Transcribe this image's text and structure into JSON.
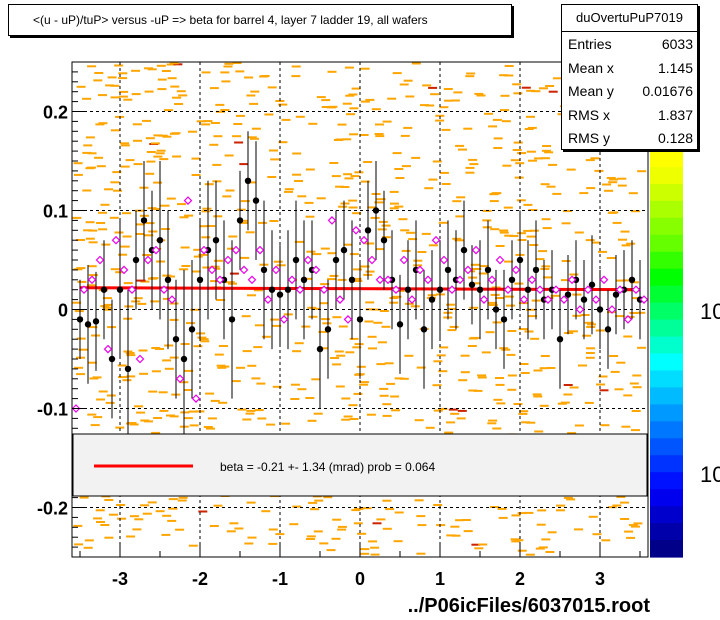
{
  "title": "<(u - uP)/tuP> versus  -uP => beta for barrel 4, layer 7 ladder 19, all wafers",
  "stats": {
    "name": "duOvertuPuP7019",
    "rows": [
      {
        "label": "Entries",
        "value": "6033"
      },
      {
        "label": "Mean x",
        "value": "1.145"
      },
      {
        "label": "Mean y",
        "value": "0.01676"
      },
      {
        "label": "RMS x",
        "value": "1.837"
      },
      {
        "label": "RMS y",
        "value": "0.128"
      }
    ]
  },
  "fit_legend": "beta =   -0.21 +-  1.34 (mrad) prob = 0.064",
  "footer": "../P06icFiles/6037015.root",
  "colors": {
    "fit_line": "#ff0000",
    "histogram_cells": "#ffa500",
    "profile_marker": "#000000",
    "open_marker": "#ee00ee"
  },
  "chart_data": {
    "type": "scatter",
    "title": "<(u - uP)/tuP> versus  -uP => beta for barrel 4, layer 7 ladder 19, all wafers",
    "xlim": [
      -3.6,
      3.6
    ],
    "ylim": [
      -0.25,
      0.25
    ],
    "x_ticks": [
      "-3",
      "-2",
      "-1",
      "0",
      "1",
      "2",
      "3"
    ],
    "y_ticks": [
      "-0.2",
      "-0.1",
      "0",
      "0.1",
      "0.2"
    ],
    "x_tick_values": [
      -3,
      -2,
      -1,
      0,
      1,
      2,
      3
    ],
    "y_tick_values": [
      -0.2,
      -0.1,
      0,
      0.1,
      0.2
    ],
    "grid": true,
    "colorbar_labels": [
      "10",
      "10"
    ],
    "fit_line": {
      "x": [
        -3.5,
        3.5
      ],
      "y": [
        0.022,
        0.02
      ]
    },
    "series": [
      {
        "marker": "filled-circle",
        "x": [
          -3.5,
          -3.4,
          -3.3,
          -3.2,
          -3.1,
          -3.0,
          -2.9,
          -2.8,
          -2.7,
          -2.6,
          -2.5,
          -2.4,
          -2.3,
          -2.2,
          -2.1,
          -2.0,
          -1.9,
          -1.8,
          -1.7,
          -1.6,
          -1.5,
          -1.4,
          -1.3,
          -1.2,
          -1.1,
          -1.0,
          -0.9,
          -0.8,
          -0.7,
          -0.6,
          -0.5,
          -0.4,
          -0.3,
          -0.2,
          -0.1,
          0.0,
          0.1,
          0.2,
          0.3,
          0.4,
          0.5,
          0.6,
          0.7,
          0.8,
          0.9,
          1.0,
          1.1,
          1.2,
          1.3,
          1.4,
          1.5,
          1.6,
          1.7,
          1.8,
          1.9,
          2.0,
          2.1,
          2.2,
          2.3,
          2.4,
          2.5,
          2.6,
          2.7,
          2.8,
          2.9,
          3.0,
          3.1,
          3.2,
          3.3,
          3.4,
          3.5
        ],
        "y": [
          -0.01,
          -0.015,
          -0.012,
          0.02,
          -0.05,
          0.02,
          -0.06,
          0.05,
          0.09,
          0.06,
          0.07,
          0.03,
          -0.03,
          -0.05,
          -0.02,
          0.03,
          0.06,
          0.07,
          0.03,
          -0.01,
          0.09,
          0.13,
          0.11,
          0.04,
          0.02,
          0.015,
          0.02,
          0.05,
          0.03,
          0.04,
          -0.04,
          -0.02,
          0.05,
          0.06,
          0.03,
          -0.01,
          0.08,
          0.1,
          0.07,
          0.03,
          -0.015,
          0.02,
          0.04,
          -0.02,
          0.01,
          0.02,
          0.04,
          0.03,
          0.06,
          0.025,
          0.02,
          0.04,
          0.0,
          -0.01,
          0.03,
          0.05,
          0.02,
          0.04,
          0.01,
          0.02,
          -0.03,
          0.015,
          0.03,
          0.01,
          0.025,
          0.0,
          -0.02,
          0.015,
          0.02,
          0.03,
          0.01
        ],
        "yerr": [
          0.04,
          0.06,
          0.05,
          0.05,
          0.06,
          0.07,
          0.08,
          0.05,
          0.06,
          0.06,
          0.08,
          0.07,
          0.06,
          0.09,
          0.07,
          0.06,
          0.07,
          0.06,
          0.06,
          0.08,
          0.05,
          0.05,
          0.06,
          0.07,
          0.06,
          0.05,
          0.06,
          0.06,
          0.06,
          0.05,
          0.06,
          0.05,
          0.05,
          0.05,
          0.06,
          0.06,
          0.05,
          0.05,
          0.05,
          0.05,
          0.05,
          0.05,
          0.05,
          0.06,
          0.05,
          0.05,
          0.05,
          0.05,
          0.05,
          0.04,
          0.05,
          0.05,
          0.04,
          0.05,
          0.04,
          0.05,
          0.05,
          0.05,
          0.04,
          0.04,
          0.05,
          0.04,
          0.04,
          0.04,
          0.05,
          0.04,
          0.04,
          0.04,
          0.04,
          0.04,
          0.04
        ]
      },
      {
        "marker": "open-diamond",
        "x": [
          -3.55,
          -3.45,
          -3.35,
          -3.25,
          -3.15,
          -3.05,
          -2.95,
          -2.85,
          -2.75,
          -2.65,
          -2.55,
          -2.45,
          -2.35,
          -2.25,
          -2.15,
          -2.05,
          -1.95,
          -1.85,
          -1.75,
          -1.65,
          -1.55,
          -1.45,
          -1.35,
          -1.25,
          -1.15,
          -1.05,
          -0.95,
          -0.85,
          -0.75,
          -0.65,
          -0.55,
          -0.45,
          -0.35,
          -0.25,
          -0.15,
          -0.05,
          0.05,
          0.15,
          0.25,
          0.35,
          0.45,
          0.55,
          0.65,
          0.75,
          0.85,
          0.95,
          1.05,
          1.15,
          1.25,
          1.35,
          1.45,
          1.55,
          1.65,
          1.75,
          1.85,
          1.95,
          2.05,
          2.15,
          2.25,
          2.35,
          2.45,
          2.55,
          2.65,
          2.75,
          2.85,
          2.95,
          3.05,
          3.15,
          3.25,
          3.35,
          3.45,
          3.55
        ],
        "y": [
          -0.1,
          0.02,
          0.03,
          0.05,
          -0.04,
          0.07,
          0.04,
          0.02,
          -0.05,
          0.05,
          0.06,
          0.02,
          0.01,
          -0.07,
          0.11,
          -0.09,
          0.06,
          0.04,
          0.03,
          0.05,
          0.06,
          0.04,
          0.03,
          0.06,
          0.01,
          0.04,
          -0.01,
          0.03,
          0.02,
          0.05,
          0.04,
          0.02,
          0.09,
          0.01,
          -0.01,
          0.08,
          0.07,
          0.05,
          0.03,
          0.03,
          0.02,
          0.05,
          0.01,
          0.04,
          0.03,
          0.07,
          0.05,
          0.02,
          0.03,
          0.04,
          0.06,
          0.01,
          0.03,
          0.05,
          0.02,
          0.04,
          0.01,
          0.03,
          0.02,
          0.01,
          0.02,
          0.01,
          0.03,
          0.0,
          0.02,
          0.01,
          0.03,
          0.0,
          0.02,
          -0.01,
          0.02,
          0.01
        ]
      }
    ]
  }
}
